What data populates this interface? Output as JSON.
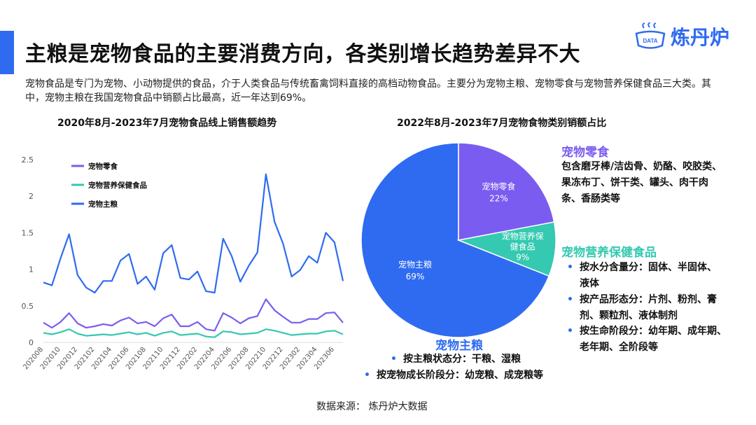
{
  "header": {
    "title": "主粮是宠物食品的主要消费方向，各类别增长趋势差异不大",
    "logo_text": "炼丹炉",
    "logo_badge": "DATA"
  },
  "description": "宠物食品是专门为宠物、小动物提供的食品，介于人类食品与传统畜禽饲料直接的高档动物食品。主要分为宠物主粮、宠物零食与宠物营养保健食品三大类。其中，宠物主粮在我国宠物食品中销额占比最高，近一年达到69%。",
  "charts_titles": {
    "line": "2020年8月-2023年7月宠物食品线上销售额趋势",
    "pie": "2022年8月-2023年7月宠物食物类别销额占比"
  },
  "chart_data": [
    {
      "type": "line",
      "title": "2020年8月-2023年7月宠物食品线上销售额趋势",
      "x": [
        "202008",
        "202009",
        "202010",
        "202011",
        "202012",
        "202101",
        "202102",
        "202103",
        "202104",
        "202105",
        "202106",
        "202107",
        "202108",
        "202109",
        "202110",
        "202111",
        "202112",
        "202201",
        "202202",
        "202203",
        "202204",
        "202205",
        "202206",
        "202207",
        "202208",
        "202209",
        "202210",
        "202211",
        "202212",
        "202301",
        "202302",
        "202303",
        "202304",
        "202305",
        "202306",
        "202307"
      ],
      "x_tick_labels": [
        "202008",
        "202010",
        "202012",
        "202102",
        "202104",
        "202106",
        "202108",
        "202110",
        "202112",
        "202202",
        "202204",
        "202206",
        "202208",
        "202210",
        "202212",
        "202302",
        "202304",
        "202306"
      ],
      "ylim": [
        0,
        2.5
      ],
      "y_ticks": [
        "0",
        "0.5",
        "1",
        "1.5",
        "2",
        "2.5"
      ],
      "legend_position": "top-left",
      "series": [
        {
          "name": "宠物零食",
          "color": "#7b5cf0",
          "values": [
            0.27,
            0.2,
            0.28,
            0.4,
            0.26,
            0.2,
            0.22,
            0.25,
            0.23,
            0.3,
            0.34,
            0.26,
            0.28,
            0.22,
            0.33,
            0.38,
            0.22,
            0.22,
            0.28,
            0.18,
            0.16,
            0.4,
            0.34,
            0.26,
            0.33,
            0.36,
            0.59,
            0.44,
            0.35,
            0.27,
            0.27,
            0.32,
            0.32,
            0.4,
            0.41,
            0.27
          ]
        },
        {
          "name": "宠物营养保健食品",
          "color": "#34c9b0",
          "values": [
            0.13,
            0.11,
            0.14,
            0.18,
            0.12,
            0.09,
            0.1,
            0.11,
            0.1,
            0.12,
            0.14,
            0.11,
            0.13,
            0.09,
            0.13,
            0.15,
            0.1,
            0.11,
            0.12,
            0.08,
            0.07,
            0.15,
            0.14,
            0.11,
            0.12,
            0.13,
            0.18,
            0.16,
            0.13,
            0.1,
            0.11,
            0.12,
            0.12,
            0.15,
            0.16,
            0.11
          ]
        },
        {
          "name": "宠物主粮",
          "color": "#2f6bf0",
          "values": [
            0.82,
            0.78,
            1.15,
            1.48,
            0.92,
            0.75,
            0.68,
            0.84,
            0.84,
            1.12,
            1.21,
            0.8,
            0.9,
            0.72,
            1.22,
            1.33,
            0.88,
            0.86,
            0.97,
            0.7,
            0.68,
            1.42,
            1.18,
            0.83,
            1.05,
            1.23,
            2.3,
            1.65,
            1.35,
            0.9,
            0.99,
            1.18,
            1.09,
            1.5,
            1.37,
            0.84
          ]
        }
      ]
    },
    {
      "type": "pie",
      "title": "2022年8月-2023年7月宠物食物类别销额占比",
      "slices": [
        {
          "label": "宠物零食",
          "value": 22,
          "display": "22%",
          "color": "#7b5cf0"
        },
        {
          "label": "宠物营养保健食品",
          "display_label": "宠物营养保健食品",
          "value": 9,
          "display": "9%",
          "color": "#34c9b0"
        },
        {
          "label": "宠物主粮",
          "value": 69,
          "display": "69%",
          "color": "#2f6bf0"
        }
      ]
    }
  ],
  "pie_labels": {
    "snack_l1": "宠物零食",
    "snack_pct": "22%",
    "health_l1": "宠物营养保",
    "health_l2": "健食品",
    "health_pct": "9%",
    "main_l1": "宠物主粮",
    "main_pct": "69%"
  },
  "annotations": {
    "snack": {
      "heading": "宠物零食",
      "lines": [
        "包含磨牙棒/洁齿骨、奶酪、咬胶类、",
        "果冻布丁、饼干类、罐头、肉干肉",
        "条、香肠类等"
      ]
    },
    "health": {
      "heading": "宠物营养保健食品",
      "bullets": [
        {
          "l1": "按水分含量分：固体、半固体、",
          "l2": "液体"
        },
        {
          "l1": "按产品形态分：片剂、粉剂、膏",
          "l2": "剂、颗粒剂、液体制剂"
        },
        {
          "l1": "按生命阶段分：幼年期、成年期、",
          "l2": "老年期、全阶段等"
        }
      ]
    },
    "main": {
      "heading": "宠物主粮",
      "bullets": [
        "按主粮状态分：干粮、湿粮",
        "按宠物成长阶段分：幼宠粮、成宠粮等"
      ]
    }
  },
  "source": "数据来源：  炼丹炉大数据",
  "colors": {
    "accent": "#2f6bf0",
    "snack": "#7b5cf0",
    "health": "#34c9b0",
    "main": "#2f6bf0"
  }
}
